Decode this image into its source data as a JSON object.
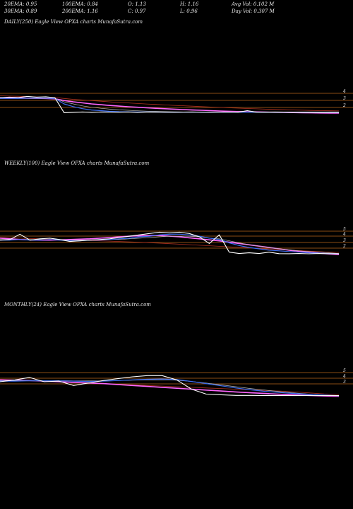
{
  "stats": {
    "ema20": "20EMA: 0.95",
    "ema30": "30EMA: 0.89",
    "ema100": "100EMA: 0.84",
    "ema200": "200EMA: 1.16",
    "open": "O: 1.13",
    "close": "C: 0.97",
    "high": "H: 1.16",
    "low": "L: 0.96",
    "avg_vol": "Avg Vol: 0.102  M",
    "day_vol": "Day Vol: 0.307  M"
  },
  "colors": {
    "background": "#000000",
    "price": "#ffffff",
    "ema_fast": "#3b6cf0",
    "ema_slow": "#ff66ff",
    "ema_mid": "#b9b9b9",
    "ema_long": "#b03020",
    "level_line": "#b8641a"
  },
  "chart_data": [
    {
      "type": "line",
      "title": "DAILY(250) Eagle   View  OPXA charts MunafaSutra.com",
      "levels": [
        "4",
        "3",
        "2"
      ],
      "series": [
        {
          "role": "price",
          "values": [
            3.1,
            3.2,
            3.15,
            3.3,
            3.2,
            3.25,
            3.1,
            0.9,
            0.95,
            1.0,
            0.95,
            1.0,
            0.98,
            0.97,
            1.0,
            0.95,
            0.98,
            1.0,
            0.97,
            0.96,
            0.98,
            1.0,
            0.97,
            0.96,
            0.98,
            0.99,
            0.97,
            1.2,
            0.98,
            0.97,
            1.0,
            0.98,
            0.97,
            0.99,
            0.98,
            0.97,
            0.98,
            0.97
          ]
        },
        {
          "role": "ema20",
          "values": [
            3.0,
            3.0,
            3.0,
            3.05,
            3.05,
            3.05,
            3.0,
            2.2,
            1.8,
            1.5,
            1.3,
            1.2,
            1.1,
            1.05,
            1.02,
            1.0,
            1.0,
            0.99,
            0.98,
            0.98,
            0.98,
            0.98,
            0.98,
            0.97,
            0.97,
            0.97,
            0.97,
            0.99,
            0.98,
            0.98,
            0.98,
            0.98,
            0.97,
            0.97,
            0.97,
            0.97,
            0.96,
            0.95
          ]
        },
        {
          "role": "ema30",
          "values": [
            3.0,
            3.0,
            3.0,
            3.0,
            3.0,
            3.0,
            3.0,
            2.5,
            2.2,
            1.9,
            1.7,
            1.55,
            1.42,
            1.32,
            1.25,
            1.18,
            1.13,
            1.09,
            1.06,
            1.03,
            1.01,
            1.0,
            0.99,
            0.98,
            0.97,
            0.96,
            0.95,
            0.95,
            0.94,
            0.93,
            0.92,
            0.92,
            0.91,
            0.9,
            0.9,
            0.89,
            0.89,
            0.89
          ]
        },
        {
          "role": "ema100",
          "values": [
            3.1,
            3.08,
            3.06,
            3.04,
            3.02,
            3.0,
            2.95,
            2.7,
            2.5,
            2.35,
            2.2,
            2.08,
            1.97,
            1.87,
            1.78,
            1.7,
            1.62,
            1.55,
            1.48,
            1.42,
            1.36,
            1.3,
            1.25,
            1.2,
            1.15,
            1.11,
            1.07,
            1.04,
            1.01,
            0.98,
            0.96,
            0.94,
            0.92,
            0.9,
            0.88,
            0.86,
            0.85,
            0.84
          ]
        },
        {
          "role": "ema200",
          "values": [
            3.4,
            3.36,
            3.32,
            3.28,
            3.24,
            3.2,
            3.15,
            3.0,
            2.88,
            2.78,
            2.68,
            2.59,
            2.5,
            2.42,
            2.34,
            2.26,
            2.19,
            2.12,
            2.05,
            1.98,
            1.92,
            1.86,
            1.8,
            1.74,
            1.68,
            1.62,
            1.57,
            1.52,
            1.47,
            1.42,
            1.38,
            1.34,
            1.3,
            1.26,
            1.23,
            1.2,
            1.18,
            1.16
          ]
        }
      ]
    },
    {
      "type": "line",
      "title": "WEEKLY(100) Eagle   View  OPXA charts MunafaSutra.com",
      "levels": [
        "5",
        "4",
        "3",
        "2"
      ],
      "series": [
        {
          "role": "price",
          "values": [
            3.0,
            3.1,
            3.9,
            3.0,
            3.2,
            3.3,
            3.1,
            2.8,
            2.9,
            3.0,
            3.1,
            3.2,
            3.4,
            3.6,
            3.8,
            4.0,
            4.2,
            4.1,
            4.2,
            4.0,
            3.5,
            2.5,
            3.8,
            1.2,
            1.0,
            1.1,
            1.0,
            1.2,
            0.98,
            0.97,
            1.0,
            0.95,
            1.0,
            0.98,
            0.97
          ]
        },
        {
          "role": "ema20",
          "values": [
            3.0,
            3.0,
            3.1,
            3.0,
            3.0,
            3.1,
            3.0,
            2.9,
            2.9,
            3.0,
            3.0,
            3.1,
            3.2,
            3.3,
            3.5,
            3.6,
            3.8,
            3.9,
            3.9,
            3.8,
            3.6,
            3.3,
            3.1,
            2.6,
            2.2,
            1.9,
            1.7,
            1.5,
            1.4,
            1.3,
            1.2,
            1.1,
            1.05,
            1.0,
            0.95
          ]
        },
        {
          "role": "ema30",
          "values": [
            3.1,
            3.1,
            3.1,
            3.1,
            3.1,
            3.1,
            3.1,
            3.0,
            3.0,
            3.0,
            3.0,
            3.1,
            3.1,
            3.2,
            3.3,
            3.4,
            3.5,
            3.6,
            3.6,
            3.6,
            3.5,
            3.3,
            3.2,
            2.9,
            2.6,
            2.3,
            2.1,
            1.9,
            1.7,
            1.55,
            1.4,
            1.3,
            1.2,
            1.1,
            1.0
          ]
        },
        {
          "role": "ema100",
          "values": [
            3.3,
            3.2,
            3.1,
            3.05,
            3.0,
            3.0,
            3.05,
            3.1,
            3.15,
            3.2,
            3.3,
            3.4,
            3.5,
            3.6,
            3.65,
            3.7,
            3.7,
            3.6,
            3.5,
            3.35,
            3.2,
            3.05,
            2.9,
            2.7,
            2.5,
            2.3,
            2.1,
            1.9,
            1.7,
            1.5,
            1.35,
            1.2,
            1.05,
            0.93,
            0.84
          ]
        },
        {
          "role": "ema200",
          "values": [
            3.4,
            3.35,
            3.3,
            3.25,
            3.2,
            3.15,
            3.1,
            3.05,
            3.0,
            2.95,
            2.9,
            2.85,
            2.8,
            2.75,
            2.7,
            2.62,
            2.55,
            2.47,
            2.4,
            2.32,
            2.24,
            2.16,
            2.08,
            2.0,
            1.92,
            1.84,
            1.76,
            1.68,
            1.6,
            1.52,
            1.44,
            1.36,
            1.28,
            1.2,
            1.16
          ]
        }
      ]
    },
    {
      "type": "line",
      "title": "MONTHLY(24) Eagle   View  OPXA charts MunafaSutra.com",
      "levels": [
        "5",
        "4",
        "3"
      ],
      "series": [
        {
          "role": "price",
          "values": [
            3.2,
            3.5,
            3.9,
            3.2,
            3.3,
            2.6,
            3.0,
            3.4,
            3.7,
            4.0,
            4.2,
            4.2,
            3.5,
            2.0,
            1.2,
            1.1,
            1.0,
            1.0,
            0.98,
            0.97,
            0.96,
            0.97,
            0.97,
            0.97
          ]
        },
        {
          "role": "ema20",
          "values": [
            3.3,
            3.3,
            3.35,
            3.35,
            3.35,
            3.3,
            3.25,
            3.3,
            3.4,
            3.5,
            3.6,
            3.65,
            3.55,
            3.25,
            2.9,
            2.55,
            2.2,
            1.9,
            1.65,
            1.45,
            1.3,
            1.15,
            1.05,
            0.95
          ]
        },
        {
          "role": "ema30",
          "values": [
            3.4,
            3.4,
            3.4,
            3.4,
            3.4,
            3.35,
            3.35,
            3.35,
            3.4,
            3.45,
            3.5,
            3.5,
            3.45,
            3.25,
            3.0,
            2.7,
            2.4,
            2.1,
            1.85,
            1.6,
            1.4,
            1.2,
            1.05,
            0.89
          ]
        },
        {
          "role": "ema100",
          "values": [
            3.5,
            3.45,
            3.4,
            3.3,
            3.2,
            3.1,
            3.0,
            2.9,
            2.75,
            2.6,
            2.45,
            2.3,
            2.15,
            2.0,
            1.85,
            1.7,
            1.55,
            1.42,
            1.3,
            1.18,
            1.07,
            0.97,
            0.9,
            0.84
          ]
        },
        {
          "role": "ema200",
          "values": [
            3.6,
            3.5,
            3.4,
            3.3,
            3.2,
            3.1,
            3.0,
            2.9,
            2.8,
            2.7,
            2.6,
            2.5,
            2.4,
            2.3,
            2.2,
            2.1,
            2.0,
            1.9,
            1.8,
            1.7,
            1.55,
            1.4,
            1.25,
            1.16
          ]
        }
      ]
    }
  ]
}
